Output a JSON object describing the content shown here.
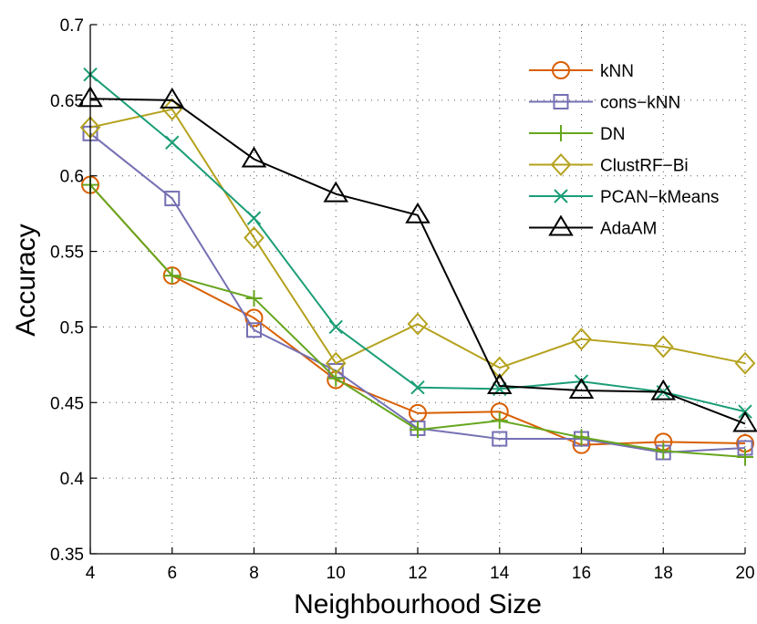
{
  "chart_data": {
    "type": "line",
    "title": "",
    "xlabel": "Neighbourhood Size",
    "ylabel": "Accuracy",
    "x": [
      4,
      6,
      8,
      10,
      12,
      14,
      16,
      18,
      20
    ],
    "xlim": [
      4,
      20
    ],
    "ylim": [
      0.35,
      0.7
    ],
    "xticks": [
      4,
      6,
      8,
      10,
      12,
      14,
      16,
      18,
      20
    ],
    "xtick_labels": [
      "4",
      "6",
      "8",
      "10",
      "12",
      "14",
      "16",
      "18",
      "20"
    ],
    "yticks": [
      0.35,
      0.4,
      0.45,
      0.5,
      0.55,
      0.6,
      0.65,
      0.7
    ],
    "ytick_labels": [
      "0.35",
      "0.4",
      "0.45",
      "0.5",
      "0.55",
      "0.6",
      "0.65",
      "0.7"
    ],
    "grid": true,
    "legend_position": "top-right",
    "series": [
      {
        "name": "kNN",
        "marker": "circle",
        "color": "#d95f02",
        "values": [
          0.594,
          0.534,
          0.506,
          0.465,
          0.443,
          0.444,
          0.422,
          0.424,
          0.423
        ]
      },
      {
        "name": "cons−kNN",
        "marker": "square",
        "color": "#7570b3",
        "values": [
          0.628,
          0.585,
          0.498,
          0.471,
          0.433,
          0.426,
          0.426,
          0.417,
          0.42
        ]
      },
      {
        "name": "DN",
        "marker": "plus",
        "color": "#66a61e",
        "values": [
          0.594,
          0.534,
          0.519,
          0.466,
          0.432,
          0.438,
          0.427,
          0.418,
          0.414
        ]
      },
      {
        "name": "ClustRF−Bi",
        "marker": "diamond",
        "color": "#b5a21e",
        "values": [
          0.632,
          0.644,
          0.559,
          0.476,
          0.502,
          0.473,
          0.492,
          0.487,
          0.476
        ]
      },
      {
        "name": "PCAN−kMeans",
        "marker": "x",
        "color": "#1b9e77",
        "values": [
          0.667,
          0.622,
          0.572,
          0.5,
          0.46,
          0.459,
          0.464,
          0.457,
          0.444
        ]
      },
      {
        "name": "AdaAM",
        "marker": "triangle",
        "color": "#000000",
        "values": [
          0.651,
          0.65,
          0.611,
          0.588,
          0.574,
          0.461,
          0.458,
          0.457,
          0.436
        ]
      }
    ]
  }
}
